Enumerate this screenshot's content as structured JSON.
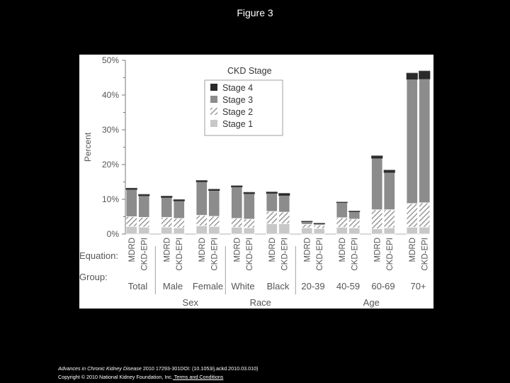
{
  "page": {
    "title": "Figure 3"
  },
  "footer": {
    "journal": "Advances in Chronic Kidney Disease",
    "citation": " 2010 17293-301DOI: (10.1053/j.ackd.2010.03.010)",
    "copyright": "Copyright © 2010 National Kidney Foundation, Inc.",
    "terms_link": " Terms and Conditions"
  },
  "chart_data": {
    "type": "bar",
    "stacked": true,
    "ylabel": "Percent",
    "ylim": [
      0,
      50
    ],
    "y_ticks": [
      0,
      10,
      20,
      30,
      40,
      50
    ],
    "y_tick_labels": [
      "0%",
      "10%",
      "20%",
      "30%",
      "40%",
      "50%"
    ],
    "grid": false,
    "legend": {
      "title": "CKD Stage",
      "placement": "top-right",
      "entries": [
        "Stage 4",
        "Stage 3",
        "Stage 2",
        "Stage 1"
      ]
    },
    "row_labels": {
      "equation": "Equation:",
      "group": "Group:"
    },
    "categories": [
      "MDRD",
      "CKD-EPI",
      "MDRD",
      "CKD-EPI",
      "MDRD",
      "CKD-EPI",
      "MDRD",
      "CKD-EPI",
      "MDRD",
      "CKD-EPI",
      "MDRD",
      "CKD-EPI",
      "MDRD",
      "CKD-EPI",
      "MDRD",
      "CKD-EPI",
      "MDRD",
      "CKD-EPI"
    ],
    "groups": [
      "Total",
      "Male",
      "Female",
      "White",
      "Black",
      "20-39",
      "40-59",
      "60-69",
      "70+"
    ],
    "super_groups": [
      {
        "label": "Sex",
        "groups": [
          1,
          2
        ]
      },
      {
        "label": "Race",
        "groups": [
          3,
          4
        ]
      },
      {
        "label": "Age",
        "groups": [
          5,
          6,
          7,
          8
        ]
      }
    ],
    "series": [
      {
        "name": "Stage 1",
        "color": "#c8c8c8",
        "pattern": "solid",
        "values": [
          2.2,
          2.0,
          2.0,
          1.8,
          2.4,
          2.2,
          2.0,
          1.8,
          3.0,
          3.0,
          1.8,
          1.6,
          2.0,
          1.8,
          1.5,
          1.8,
          2.0,
          2.0
        ]
      },
      {
        "name": "Stage 2",
        "color": "#9a9a9a",
        "pattern": "hatched",
        "values": [
          2.8,
          2.8,
          2.8,
          2.7,
          3.0,
          2.9,
          2.5,
          2.5,
          3.5,
          3.3,
          1.0,
          1.0,
          2.7,
          2.5,
          5.5,
          5.2,
          6.8,
          7.0
        ]
      },
      {
        "name": "Stage 3",
        "color": "#8c8c8c",
        "pattern": "solid",
        "values": [
          7.8,
          6.2,
          5.7,
          5.0,
          9.6,
          7.4,
          9.0,
          7.3,
          5.2,
          4.8,
          0.7,
          0.3,
          4.3,
          2.1,
          14.8,
          10.7,
          35.7,
          35.6
        ]
      },
      {
        "name": "Stage 4",
        "color": "#2a2a2a",
        "pattern": "solid",
        "values": [
          0.4,
          0.4,
          0.4,
          0.4,
          0.4,
          0.4,
          0.4,
          0.4,
          0.4,
          0.6,
          0.2,
          0.2,
          0.2,
          0.2,
          0.7,
          0.7,
          1.8,
          2.3
        ]
      }
    ]
  }
}
